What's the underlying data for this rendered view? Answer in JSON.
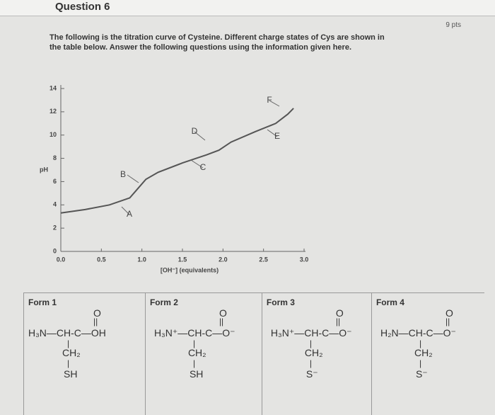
{
  "header": {
    "title": "Question 6",
    "points": "9 pts"
  },
  "prompt": {
    "lines": [
      "The following is the titration curve of Cysteine.  Different charge states of Cys are shown in",
      "the table below.  Answer the following questions using the information given here."
    ]
  },
  "chart_data": {
    "type": "line",
    "ylabel": "pH",
    "xlabel": "[OH⁻] (equivalents)",
    "xlim": [
      0,
      3
    ],
    "ylim": [
      0,
      14
    ],
    "xticks": [
      {
        "value": 0,
        "label": "0.0"
      },
      {
        "value": 0.5,
        "label": "0.5"
      },
      {
        "value": 1,
        "label": "1.0"
      },
      1.5,
      {
        "value": 2,
        "label": "2.0"
      },
      2.5,
      {
        "value": 3,
        "label": "3.0"
      }
    ],
    "yticks": [
      0,
      2,
      4,
      6,
      8,
      10,
      12,
      14
    ],
    "x": [
      0,
      0.3,
      0.6,
      0.85,
      0.95,
      1.05,
      1.2,
      1.5,
      1.8,
      1.95,
      2.1,
      2.4,
      2.65,
      2.8,
      2.87
    ],
    "values": [
      3.3,
      3.6,
      4.0,
      4.6,
      5.4,
      6.2,
      6.8,
      7.6,
      8.3,
      8.7,
      9.4,
      10.3,
      11.0,
      11.8,
      12.3
    ],
    "color": "#555555",
    "annotations": [
      "A",
      "B",
      "C",
      "D",
      "E",
      "F"
    ]
  },
  "table": {
    "forms": [
      {
        "label": "Form 1",
        "top": "O",
        "main": "H₃N—CH-C—OH",
        "side": "CH₂",
        "end": "SH"
      },
      {
        "label": "Form 2",
        "top": "O",
        "main": "H₃N⁺—CH-C—O⁻",
        "side": "CH₂",
        "end": "SH"
      },
      {
        "label": "Form 3",
        "top": "O",
        "main": "H₃N⁺—CH-C—O⁻",
        "side": "CH₂",
        "end": "S⁻"
      },
      {
        "label": "Form 4",
        "top": "O",
        "main": "H₂N—CH-C—O⁻",
        "side": "CH₂",
        "end": "S⁻"
      }
    ]
  }
}
